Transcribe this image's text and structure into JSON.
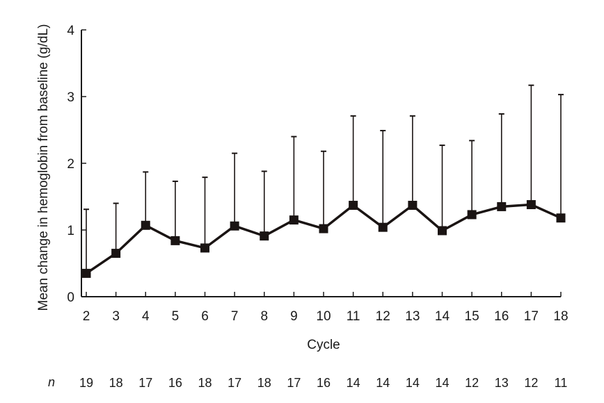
{
  "chart_data": {
    "type": "line",
    "title": "",
    "xlabel": "Cycle",
    "ylabel": "Mean change in hemoglobin from baseline (g/dL)",
    "x": [
      2,
      3,
      4,
      5,
      6,
      7,
      8,
      9,
      10,
      11,
      12,
      13,
      14,
      15,
      16,
      17,
      18
    ],
    "series": [
      {
        "values": [
          0.35,
          0.65,
          1.07,
          0.84,
          0.73,
          1.06,
          0.91,
          1.15,
          1.02,
          1.37,
          1.04,
          1.37,
          0.99,
          1.23,
          1.35,
          1.38,
          1.18
        ],
        "error_upper": [
          1.31,
          1.4,
          1.87,
          1.73,
          1.79,
          2.15,
          1.88,
          2.4,
          2.18,
          2.71,
          2.49,
          2.71,
          2.27,
          2.34,
          2.74,
          3.17,
          3.03
        ]
      }
    ],
    "ylim": [
      0,
      4
    ],
    "yticks": [
      0,
      1,
      2,
      3,
      4
    ],
    "n_label": "n",
    "n_values": [
      19,
      18,
      17,
      16,
      18,
      17,
      18,
      17,
      16,
      14,
      14,
      14,
      14,
      12,
      13,
      12,
      11
    ],
    "grid": false,
    "legend": "none",
    "colors": {
      "line": "#1a1413",
      "axis": "#1a1a1a"
    }
  }
}
